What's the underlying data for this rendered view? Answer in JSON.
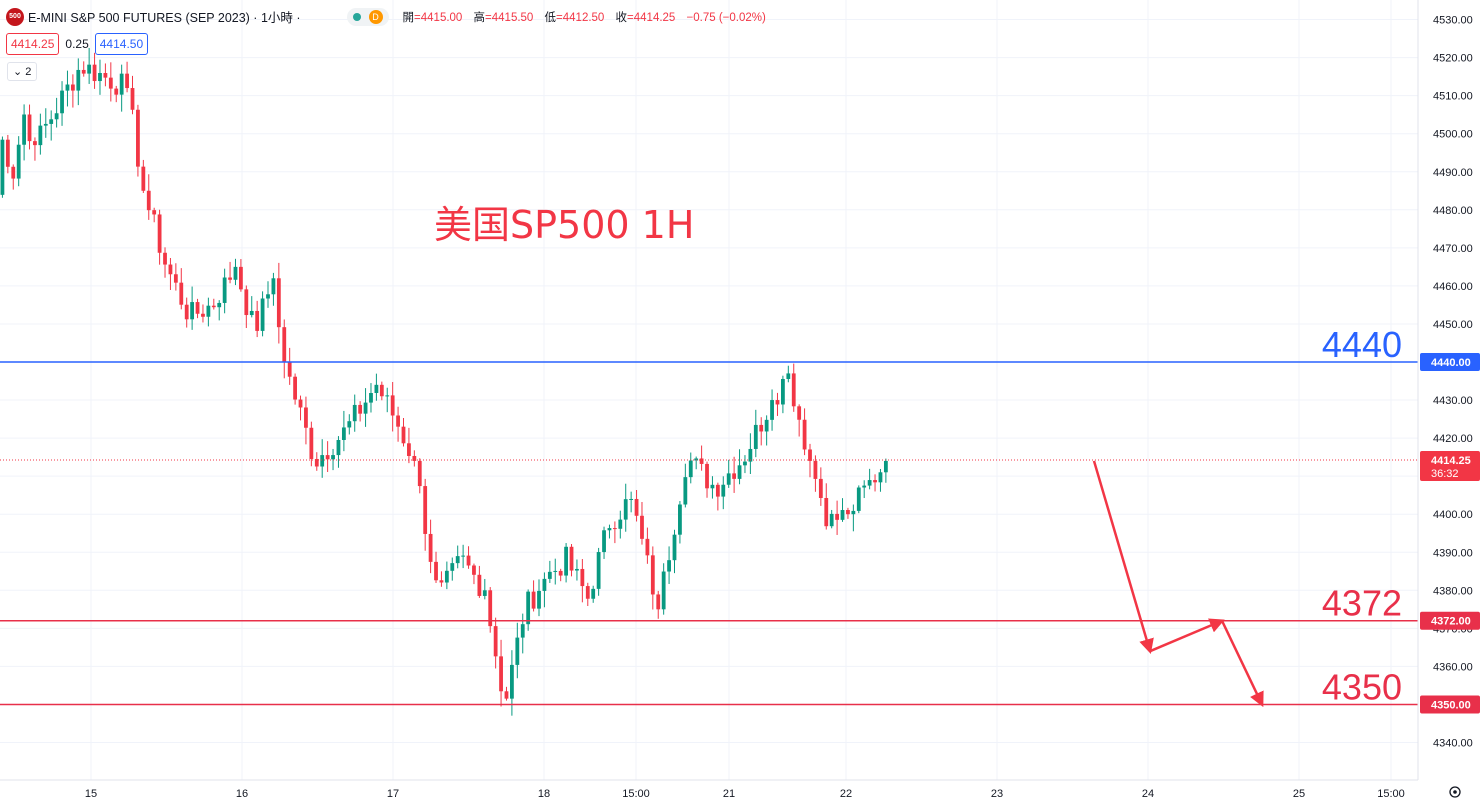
{
  "header": {
    "logo": "500",
    "symbol": "E-MINI S&P 500 FUTURES (SEP 2023) · 1小時 ·",
    "badge": "D",
    "ohlc": [
      {
        "k": "開",
        "v": "=4415.00"
      },
      {
        "k": "高",
        "v": "=4415.50"
      },
      {
        "k": "低",
        "v": "=4412.50"
      },
      {
        "k": "收",
        "v": "=4414.25"
      },
      {
        "k": "",
        "v": "−0.75 (−0.02%)"
      }
    ],
    "bid": "4414.25",
    "spread": "0.25",
    "ask": "4414.50",
    "indicators_toggle": "⌄ 2"
  },
  "colors": {
    "up": "#089981",
    "down": "#f23645",
    "blue_line": "#2962ff",
    "red_line": "#e8304a",
    "annotation": "#f23645"
  },
  "chart_data": {
    "type": "candlestick",
    "title": "美国SP500 1H",
    "ylim": [
      4336,
      4534
    ],
    "y_ticks": [
      "4340.00",
      "4350.00",
      "4360.00",
      "4370.00",
      "4380.00",
      "4390.00",
      "4400.00",
      "4410.00",
      "4420.00",
      "4430.00",
      "4440.00",
      "4450.00",
      "4460.00",
      "4470.00",
      "4480.00",
      "4490.00",
      "4500.00",
      "4510.00",
      "4520.00",
      "4530.00"
    ],
    "x_ticks": [
      "15",
      "16",
      "17",
      "18",
      "15:00",
      "21",
      "22",
      "23",
      "24",
      "25",
      "15:00"
    ],
    "horizontal_lines": [
      {
        "value": 4440,
        "label": "4440",
        "axis_label": "4440.00",
        "color": "blue"
      },
      {
        "value": 4372,
        "label": "4372",
        "axis_label": "4372.00",
        "color": "red"
      },
      {
        "value": 4350,
        "label": "4350",
        "axis_label": "4350.00",
        "color": "red"
      }
    ],
    "last_price": {
      "value": 4414.25,
      "label": "4414.25",
      "countdown": "36:32"
    },
    "segments": [
      {
        "n": 8,
        "pts": [
          4470,
          4498,
          4490,
          4505,
          4497
        ]
      },
      {
        "n": 17,
        "pts": [
          4497,
          4518,
          4512
        ]
      },
      {
        "n": 3,
        "pts": [
          4512,
          4485
        ]
      },
      {
        "n": 17,
        "pts": [
          4485,
          4465,
          4452,
          4455,
          4465
        ]
      },
      {
        "n": 7,
        "pts": [
          4465,
          4448,
          4462
        ]
      },
      {
        "n": 2,
        "pts": [
          4462,
          4440
        ]
      },
      {
        "n": 17,
        "pts": [
          4440,
          4414,
          4422,
          4434
        ]
      },
      {
        "n": 7,
        "pts": [
          4434,
          4425,
          4414
        ]
      },
      {
        "n": 13,
        "pts": [
          4414,
          4378,
          4388,
          4380
        ]
      },
      {
        "n": 11,
        "pts": [
          4380,
          4350,
          4375,
          4383
        ]
      },
      {
        "n": 16,
        "pts": [
          4383,
          4388,
          4378,
          4398,
          4404
        ]
      },
      {
        "n": 5,
        "pts": [
          4404,
          4375
        ]
      },
      {
        "n": 21,
        "pts": [
          4375,
          4415,
          4407,
          4415,
          4430
        ]
      },
      {
        "n": 3,
        "pts": [
          4430,
          4437
        ]
      },
      {
        "n": 4,
        "pts": [
          4437,
          4414
        ]
      },
      {
        "n": 7,
        "pts": [
          4414,
          4398,
          4400
        ]
      },
      {
        "n": 7,
        "pts": [
          4400,
          4414
        ]
      }
    ],
    "forecast_arrow": [
      {
        "date": "23",
        "price": 4414
      },
      {
        "date": "24",
        "price": 4364
      },
      {
        "date": "24",
        "price": 4372
      },
      {
        "date": "24",
        "price": 4350
      }
    ]
  }
}
